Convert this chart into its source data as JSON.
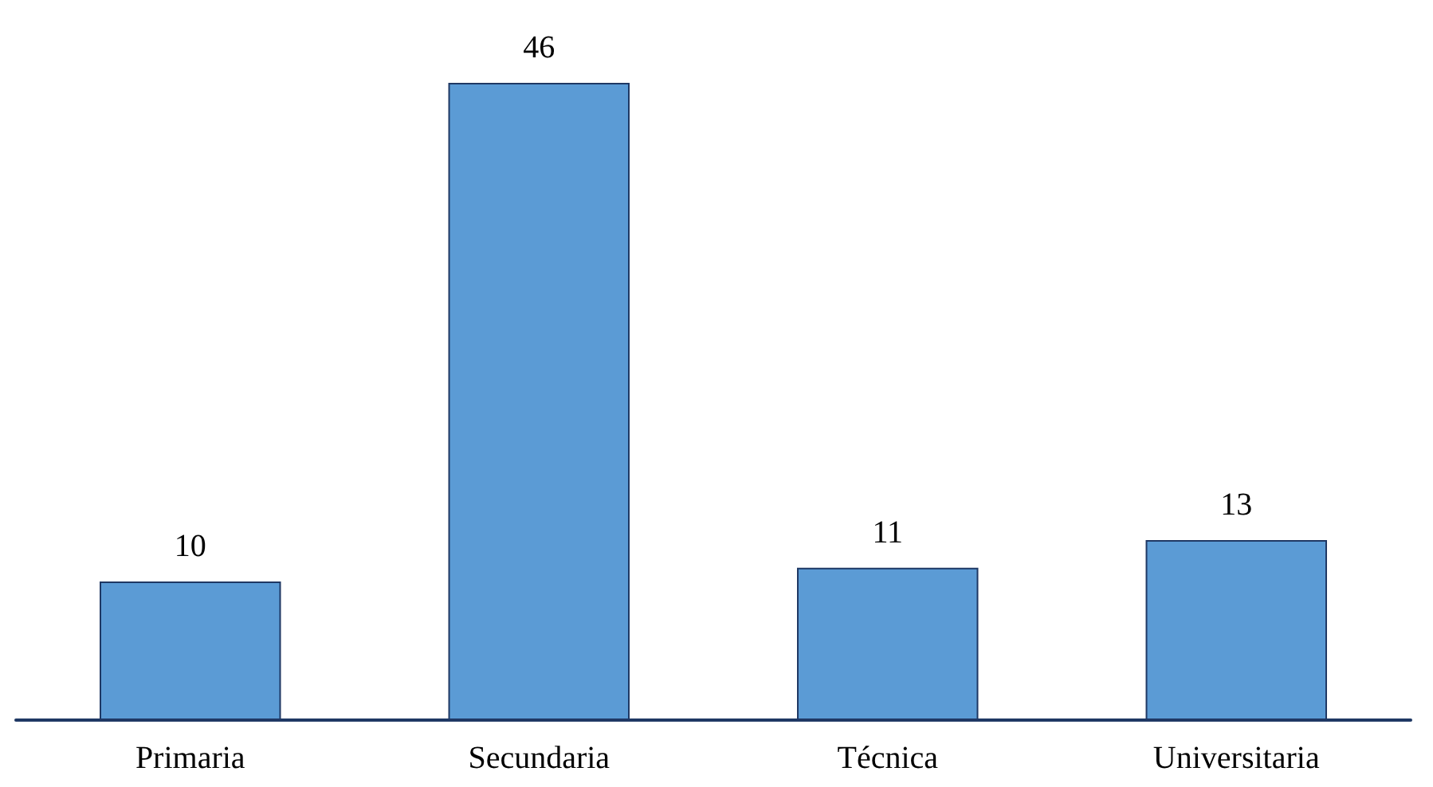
{
  "chart_data": {
    "type": "bar",
    "categories": [
      "Primaria",
      "Secundaria",
      "Técnica",
      "Universitaria"
    ],
    "values": [
      10,
      46,
      11,
      13
    ],
    "color": "#5b9bd5",
    "data_labels": true,
    "grid": false
  }
}
